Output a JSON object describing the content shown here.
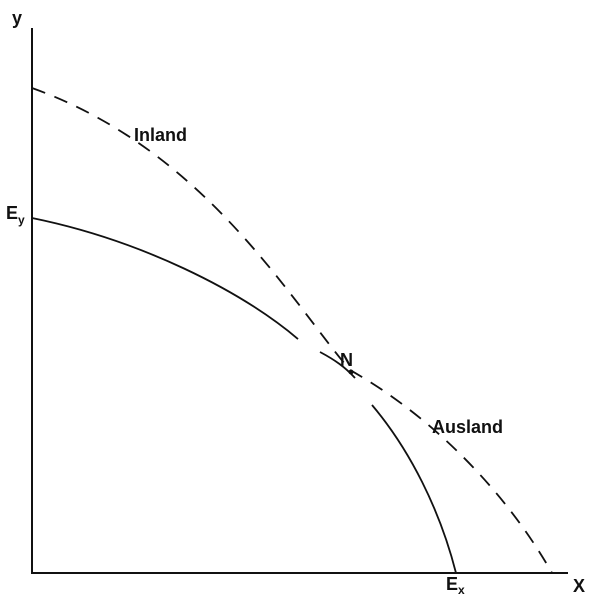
{
  "labels": {
    "y_axis": "y",
    "x_axis": "X",
    "curve_dashed": "Inland",
    "curve_dashed_lower": "Ausland",
    "point_intersection": "N",
    "y_intercept_main": "E",
    "y_intercept_sub": "y",
    "x_intercept_main": "E",
    "x_intercept_sub": "x"
  },
  "colors": {
    "ink": "#111111",
    "background": "#ffffff"
  }
}
